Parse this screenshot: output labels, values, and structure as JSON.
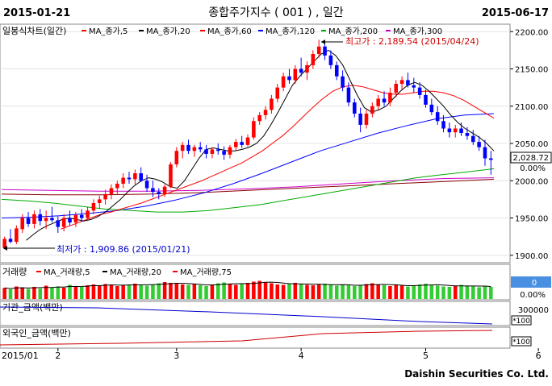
{
  "header": {
    "start_date": "2015-01-21",
    "title": "종합주가지수 ( 001 ) , 일간",
    "end_date": "2015-06-17"
  },
  "legend": {
    "main": "일봉식차트(일간)",
    "ma5": "MA_종가,5",
    "ma20": "MA_종가,20",
    "ma60": "MA_종가,60",
    "ma120": "MA_종가,120",
    "ma200": "MA_종가,200",
    "ma300": "MA_종가,300"
  },
  "annotations": {
    "high": "최고가 : 2,189.54 (2015/04/24)",
    "low": "최저가 : 1,909.86 (2015/01/21)"
  },
  "price_box": {
    "last": "2,028.72",
    "change": "0.00%"
  },
  "volume_panel": {
    "legend_label": "거래량",
    "ma5": "MA_거래량,5",
    "ma20": "MA_거래량,20",
    "ma75": "MA_거래량,75",
    "value_box": "0",
    "pct": "0.00%"
  },
  "inst_panel": {
    "label": "기관_금액(백만)",
    "tick": "300000",
    "unit": "*100"
  },
  "foreign_panel": {
    "label": "외국인_금액(백만)",
    "unit": "*100"
  },
  "x_axis": {
    "ticks": [
      "2015/01",
      "2",
      "3",
      "4",
      "5",
      "6"
    ]
  },
  "footer": {
    "brand": "Daishin Securities Co. Ltd."
  },
  "colors": {
    "up": "#ff0000",
    "down": "#0000ff",
    "ma5": "#000000",
    "ma20": "#ff0000",
    "ma60": "#00aa00",
    "ma120": "#0000ff",
    "ma200": "#cc00cc",
    "ma300": "#880000",
    "volume_up": "#ff0000",
    "volume_down": "#33cc33",
    "box": "#4a90e2"
  },
  "chart_data": {
    "type": "candlestick",
    "y_ticks": [
      1900,
      1950,
      2000,
      2050,
      2100,
      2150,
      2200
    ],
    "ylim": [
      1890,
      2210
    ],
    "month_ticks": [
      {
        "label": "2",
        "index": 9
      },
      {
        "label": "3",
        "index": 29
      },
      {
        "label": "4",
        "index": 50
      },
      {
        "label": "5",
        "index": 71
      },
      {
        "label": "6",
        "index": 90
      }
    ],
    "ohlc": [
      [
        1910,
        1925,
        1908,
        1922
      ],
      [
        1922,
        1935,
        1916,
        1918
      ],
      [
        1918,
        1940,
        1915,
        1936
      ],
      [
        1935,
        1955,
        1930,
        1950
      ],
      [
        1950,
        1958,
        1938,
        1942
      ],
      [
        1942,
        1960,
        1936,
        1955
      ],
      [
        1955,
        1962,
        1940,
        1946
      ],
      [
        1946,
        1960,
        1935,
        1950
      ],
      [
        1950,
        1965,
        1944,
        1947
      ],
      [
        1947,
        1952,
        1930,
        1938
      ],
      [
        1938,
        1955,
        1932,
        1950
      ],
      [
        1950,
        1960,
        1940,
        1944
      ],
      [
        1944,
        1958,
        1938,
        1954
      ],
      [
        1954,
        1962,
        1945,
        1950
      ],
      [
        1950,
        1965,
        1946,
        1960
      ],
      [
        1960,
        1975,
        1955,
        1970
      ],
      [
        1970,
        1980,
        1962,
        1975
      ],
      [
        1975,
        1988,
        1968,
        1982
      ],
      [
        1982,
        1995,
        1975,
        1990
      ],
      [
        1990,
        2000,
        1982,
        1996
      ],
      [
        1996,
        2010,
        1990,
        2004
      ],
      [
        2004,
        2012,
        1996,
        2002
      ],
      [
        2002,
        2015,
        1995,
        2010
      ],
      [
        2010,
        2018,
        1998,
        2000
      ],
      [
        2000,
        2008,
        1985,
        1990
      ],
      [
        1990,
        2000,
        1978,
        1985
      ],
      [
        1985,
        1990,
        1975,
        1982
      ],
      [
        1982,
        1995,
        1978,
        1992
      ],
      [
        1992,
        2025,
        1990,
        2022
      ],
      [
        2022,
        2045,
        2018,
        2040
      ],
      [
        2040,
        2052,
        2030,
        2048
      ],
      [
        2048,
        2055,
        2036,
        2040
      ],
      [
        2040,
        2048,
        2032,
        2045
      ],
      [
        2045,
        2052,
        2038,
        2042
      ],
      [
        2042,
        2048,
        2030,
        2036
      ],
      [
        2036,
        2045,
        2030,
        2042
      ],
      [
        2042,
        2050,
        2035,
        2040
      ],
      [
        2040,
        2046,
        2028,
        2035
      ],
      [
        2035,
        2048,
        2030,
        2045
      ],
      [
        2045,
        2056,
        2040,
        2052
      ],
      [
        2052,
        2060,
        2044,
        2048
      ],
      [
        2048,
        2062,
        2046,
        2058
      ],
      [
        2058,
        2085,
        2055,
        2080
      ],
      [
        2080,
        2092,
        2075,
        2088
      ],
      [
        2088,
        2100,
        2082,
        2095
      ],
      [
        2095,
        2115,
        2090,
        2110
      ],
      [
        2110,
        2130,
        2105,
        2125
      ],
      [
        2125,
        2145,
        2120,
        2140
      ],
      [
        2140,
        2150,
        2130,
        2135
      ],
      [
        2135,
        2155,
        2130,
        2150
      ],
      [
        2150,
        2165,
        2140,
        2145
      ],
      [
        2145,
        2160,
        2135,
        2155
      ],
      [
        2155,
        2175,
        2150,
        2170
      ],
      [
        2170,
        2189,
        2165,
        2180
      ],
      [
        2180,
        2188,
        2162,
        2168
      ],
      [
        2168,
        2175,
        2150,
        2155
      ],
      [
        2155,
        2160,
        2135,
        2140
      ],
      [
        2140,
        2148,
        2120,
        2125
      ],
      [
        2125,
        2132,
        2100,
        2105
      ],
      [
        2105,
        2110,
        2085,
        2090
      ],
      [
        2090,
        2098,
        2065,
        2075
      ],
      [
        2075,
        2095,
        2070,
        2090
      ],
      [
        2090,
        2105,
        2085,
        2100
      ],
      [
        2100,
        2115,
        2095,
        2110
      ],
      [
        2110,
        2120,
        2100,
        2105
      ],
      [
        2105,
        2125,
        2100,
        2118
      ],
      [
        2118,
        2135,
        2112,
        2130
      ],
      [
        2130,
        2140,
        2122,
        2135
      ],
      [
        2135,
        2145,
        2125,
        2128
      ],
      [
        2128,
        2138,
        2118,
        2125
      ],
      [
        2125,
        2132,
        2110,
        2115
      ],
      [
        2115,
        2122,
        2098,
        2102
      ],
      [
        2102,
        2110,
        2088,
        2092
      ],
      [
        2092,
        2100,
        2075,
        2080
      ],
      [
        2080,
        2088,
        2065,
        2070
      ],
      [
        2070,
        2078,
        2058,
        2065
      ],
      [
        2065,
        2075,
        2058,
        2070
      ],
      [
        2070,
        2078,
        2060,
        2064
      ],
      [
        2064,
        2072,
        2055,
        2060
      ],
      [
        2060,
        2068,
        2048,
        2052
      ],
      [
        2052,
        2060,
        2040,
        2045
      ],
      [
        2045,
        2055,
        2020,
        2030
      ],
      [
        2030,
        2040,
        2008,
        2028
      ]
    ],
    "ma5": [
      1920,
      1928,
      1935,
      1940,
      1944,
      1948,
      1950,
      1948,
      1946,
      1948,
      1952,
      1958,
      1966,
      1974,
      1984,
      1993,
      2000,
      2004,
      2002,
      1998,
      1992,
      1990,
      2000,
      2015,
      2030,
      2042,
      2044,
      2042,
      2040,
      2040,
      2042,
      2045,
      2050,
      2060,
      2075,
      2092,
      2110,
      2128,
      2140,
      2150,
      2160,
      2170,
      2175,
      2168,
      2155,
      2135,
      2115,
      2098,
      2092,
      2095,
      2100,
      2110,
      2120,
      2128,
      2132,
      2128,
      2120,
      2110,
      2100,
      2088,
      2078,
      2070,
      2064,
      2058,
      2050,
      2040
    ],
    "ma20": [
      1935,
      1940,
      1945,
      1950,
      1955,
      1958,
      1962,
      1966,
      1970,
      1975,
      1980,
      1985,
      1990,
      1995,
      2000,
      2006,
      2012,
      2018,
      2024,
      2032,
      2040,
      2050,
      2060,
      2072,
      2085,
      2098,
      2110,
      2120,
      2126,
      2128,
      2126,
      2122,
      2118,
      2116,
      2116,
      2118,
      2120,
      2120,
      2118,
      2114,
      2108,
      2100,
      2092,
      2084
    ],
    "ma60": [
      1975,
      1973,
      1970,
      1966,
      1962,
      1960,
      1958,
      1958,
      1960,
      1964,
      1968,
      1974,
      1980,
      1986,
      1992,
      1998,
      2004,
      2008,
      2012,
      2016
    ],
    "ma120": [
      1950,
      1951,
      1953,
      1956,
      1960,
      1966,
      1974,
      1984,
      1996,
      2010,
      2025,
      2040,
      2052,
      2064,
      2074,
      2083,
      2088,
      2090
    ],
    "ma200": [
      1988,
      1987,
      1986,
      1986,
      1987,
      1989,
      1992,
      1996,
      2000,
      2003,
      2004
    ],
    "ma300": [
      1982,
      1981,
      1981,
      1982,
      1984,
      1987,
      1990,
      1993,
      1996,
      1999,
      2002
    ],
    "volume_pct": [
      55,
      48,
      62,
      58,
      50,
      60,
      52,
      66,
      58,
      62,
      56,
      70,
      64,
      60,
      68,
      72,
      66,
      74,
      70,
      64,
      68,
      72,
      76,
      70,
      66,
      72,
      78,
      84,
      80,
      76,
      72,
      70,
      74,
      68,
      64,
      72,
      78,
      82,
      76,
      70,
      74,
      80,
      86,
      90,
      84,
      78,
      72,
      70,
      76,
      80,
      74,
      70,
      68,
      72,
      76,
      70,
      66,
      72,
      68,
      64,
      70,
      74,
      78,
      72,
      68,
      64,
      70,
      66,
      62,
      68,
      72,
      76,
      70,
      66,
      62,
      60,
      66,
      70,
      64,
      62,
      58,
      66,
      60
    ]
  }
}
